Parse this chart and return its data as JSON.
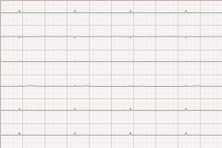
{
  "bg_color": "#f8f4f4",
  "grid_major_color": "#d8c8c8",
  "grid_minor_color": "#ede5e5",
  "ecg_color": "#909090",
  "n_rows": 6,
  "figsize": [
    2.5,
    1.67
  ],
  "dpi": 100,
  "border_color": "#c0b0b0",
  "n_major_cols": 10,
  "n_minor_per_major": 5
}
